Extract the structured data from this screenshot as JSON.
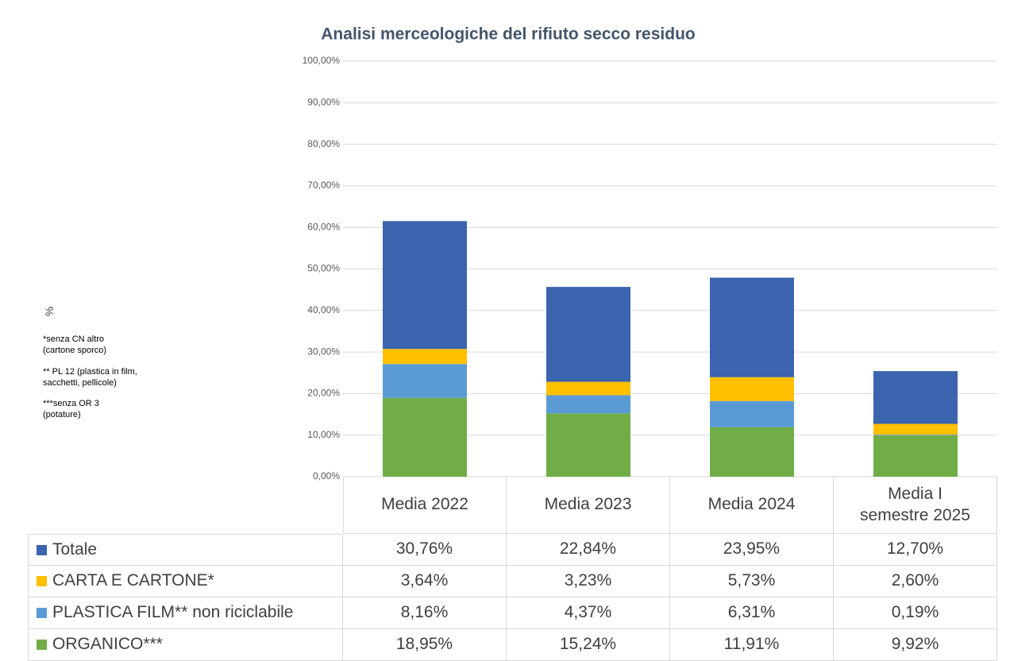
{
  "chart_data": {
    "type": "stacked-bar",
    "title": "Analisi merceologiche del rifiuto secco residuo",
    "y_label": "%",
    "notes": [
      "*senza CN altro\n(cartone sporco)",
      "** PL 12 (plastica in film,\nsacchetti, pellicole)",
      "***senza OR 3\n(potature)"
    ],
    "categories": [
      "Media 2022",
      "Media 2023",
      "Media 2024",
      "Media I semestre 2025"
    ],
    "series": [
      {
        "name": "Totale",
        "color": "#3a64ad",
        "values": [
          30.76,
          22.84,
          23.95,
          12.7
        ],
        "value_labels": [
          "30,76%",
          "22,84%",
          "23,95%",
          "12,70%"
        ]
      },
      {
        "name": "CARTA E CARTONE*",
        "color": "#ffc000",
        "values": [
          3.64,
          3.23,
          5.73,
          2.6
        ],
        "value_labels": [
          "3,64%",
          "3,23%",
          "5,73%",
          "2,60%"
        ]
      },
      {
        "name": "PLASTICA FILM** non riciclabile",
        "color": "#5b9bd5",
        "values": [
          8.16,
          4.37,
          6.31,
          0.19
        ],
        "value_labels": [
          "8,16%",
          "4,37%",
          "6,31%",
          "0,19%"
        ]
      },
      {
        "name": "ORGANICO***",
        "color": "#70ad47",
        "values": [
          18.95,
          15.24,
          11.91,
          9.92
        ],
        "value_labels": [
          "18,95%",
          "15,24%",
          "11,91%",
          "9,92%"
        ]
      }
    ],
    "ylim": [
      0,
      100
    ],
    "yticks": [
      {
        "value": 0,
        "label": "0,00%"
      },
      {
        "value": 10,
        "label": "10,00%"
      },
      {
        "value": 20,
        "label": "20,00%"
      },
      {
        "value": 30,
        "label": "30,00%"
      },
      {
        "value": 40,
        "label": "40,00%"
      },
      {
        "value": 50,
        "label": "50,00%"
      },
      {
        "value": 60,
        "label": "60,00%"
      },
      {
        "value": 70,
        "label": "70,00%"
      },
      {
        "value": 80,
        "label": "80,00%"
      },
      {
        "value": 90,
        "label": "90,00%"
      },
      {
        "value": 100,
        "label": "100,00%"
      }
    ],
    "grid": true
  }
}
